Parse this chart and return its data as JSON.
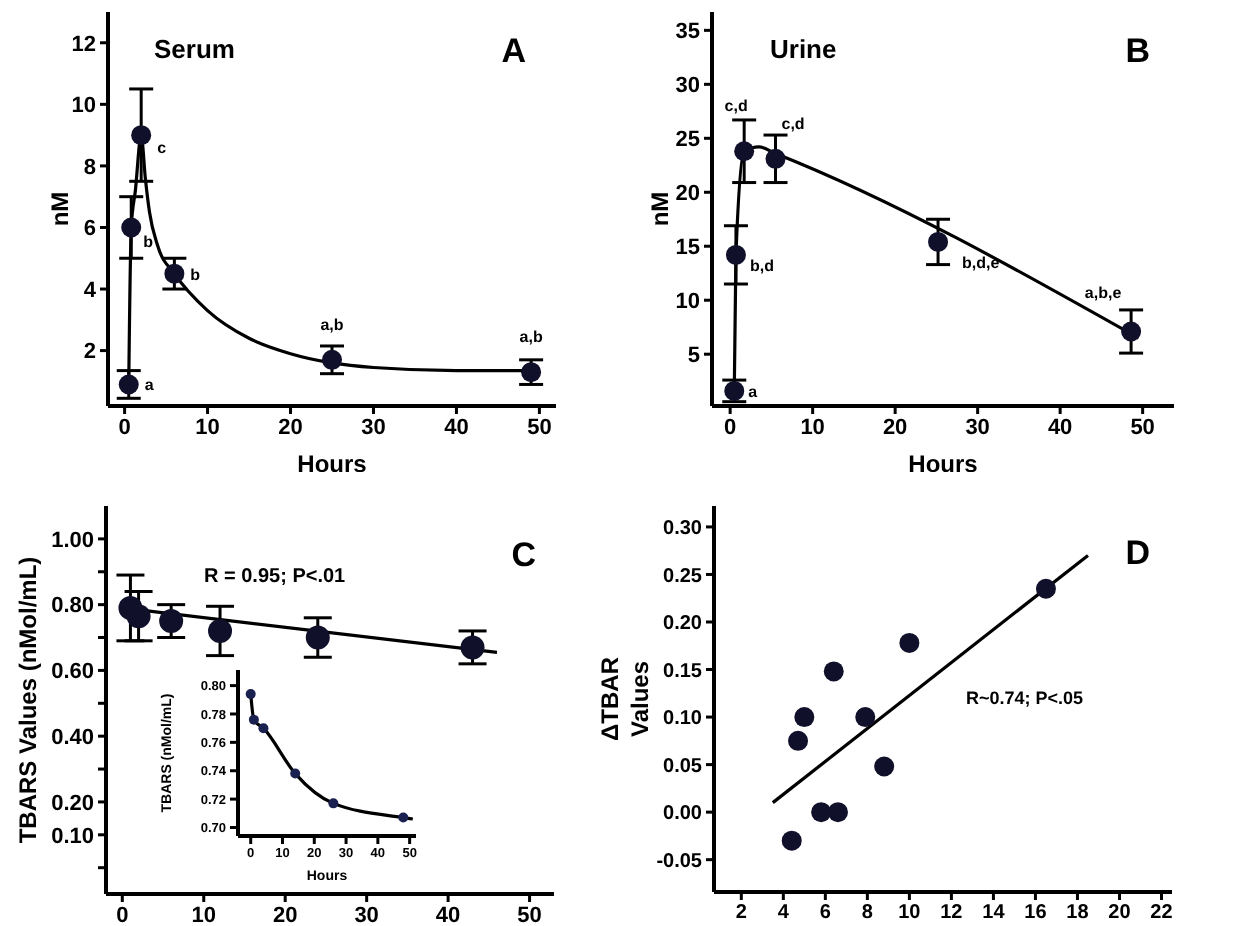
{
  "chart_data": [
    {
      "type": "scatter",
      "xlabel": "Hours",
      "ylabel": "nM",
      "xlim": [
        -2,
        52
      ],
      "ylim": [
        0.2,
        13
      ],
      "xticks": [
        0,
        10,
        20,
        30,
        40,
        50
      ],
      "yticks": [
        2,
        4,
        6,
        8,
        10,
        12
      ],
      "annotations": [
        "Serum",
        "A",
        {
          "text": "a",
          "x": 0.5,
          "y": 0.9
        },
        {
          "text": "b",
          "x": 0.8,
          "y": 6
        },
        {
          "text": "c",
          "x": 2,
          "y": 9
        },
        {
          "text": "b",
          "x": 6,
          "y": 4.5
        },
        {
          "text": "a,b",
          "x": 25,
          "y": 1.7
        },
        {
          "text": "a,b",
          "x": 49,
          "y": 1.3
        }
      ],
      "series": [
        {
          "type": "scatter",
          "marker": "circle",
          "color": "#10102a",
          "x": [
            0.5,
            0.8,
            2,
            6,
            25,
            49
          ],
          "values": [
            0.9,
            6,
            9,
            4.5,
            1.7,
            1.3
          ],
          "errors": [
            0.45,
            1.0,
            1.5,
            0.5,
            0.45,
            0.4
          ]
        },
        {
          "type": "line",
          "color": "#000000",
          "x": [
            0.5,
            0.8,
            1.3,
            2,
            2.5,
            3,
            4,
            6,
            10,
            15,
            20,
            25,
            30,
            40,
            49
          ],
          "values": [
            0.9,
            6,
            7.2,
            9,
            7.6,
            6.5,
            5.4,
            4.5,
            3.3,
            2.4,
            1.9,
            1.6,
            1.45,
            1.35,
            1.35
          ]
        }
      ]
    },
    {
      "type": "scatter",
      "xlabel": "Hours",
      "ylabel": "nM",
      "xlim": [
        -2.2,
        53.8
      ],
      "ylim": [
        0.2,
        36.7
      ],
      "xticks": [
        0,
        10,
        20,
        30,
        40,
        50
      ],
      "yticks": [
        5,
        10,
        15,
        20,
        25,
        30,
        35
      ],
      "annotations": [
        "Urine",
        "B",
        {
          "text": "a",
          "x": 0.5,
          "y": 1.6
        },
        {
          "text": "b,d",
          "x": 0.7,
          "y": 14.2
        },
        {
          "text": "c,d",
          "x": 1.7,
          "y": 23.8
        },
        {
          "text": "c,d",
          "x": 5.5,
          "y": 23.1
        },
        {
          "text": "b,d,e",
          "x": 25.2,
          "y": 15.4
        },
        {
          "text": "a,b,e",
          "x": 48.6,
          "y": 7.1
        }
      ],
      "series": [
        {
          "type": "scatter",
          "marker": "circle",
          "color": "#10102a",
          "x": [
            0.5,
            0.7,
            1.7,
            5.5,
            25.2,
            48.6
          ],
          "values": [
            1.6,
            14.2,
            23.8,
            23.1,
            15.4,
            7.1
          ],
          "errors": [
            1,
            2.7,
            2.9,
            2.2,
            2.1,
            2
          ]
        },
        {
          "type": "line",
          "color": "#000000",
          "x": [
            0.5,
            0.7,
            1.7,
            3.5,
            5.5,
            49.5
          ],
          "values": [
            1.6,
            14.2,
            23.8,
            24.2,
            23.6,
            6.5
          ]
        }
      ]
    },
    {
      "type": "scatter",
      "ylabel": "TBARS Values (nMol/mL)",
      "xlim": [
        -2,
        53
      ],
      "ylim": [
        -0.08,
        1.1
      ],
      "xticks": [
        0,
        10,
        20,
        30,
        40,
        50
      ],
      "yticks": [
        {
          "value": 0,
          "label": null
        },
        {
          "value": 0.1,
          "label": "0.10"
        },
        {
          "value": 0.2,
          "label": "0.20"
        },
        {
          "value": 0.3,
          "label": null
        },
        {
          "value": 0.4,
          "label": "0.40"
        },
        {
          "value": 0.5,
          "label": null
        },
        {
          "value": 0.6,
          "label": "0.60"
        },
        {
          "value": 0.7,
          "label": null
        },
        {
          "value": 0.8,
          "label": "0.80"
        },
        {
          "value": 0.9,
          "label": null
        },
        {
          "value": 1,
          "label": "1.00"
        }
      ],
      "annotations": [
        "R = 0.95; P<.01",
        "C"
      ],
      "series": [
        {
          "type": "scatter",
          "marker": "circle",
          "color": "#10102a",
          "x": [
            1,
            2,
            6,
            12,
            24,
            43
          ],
          "values": [
            0.79,
            0.765,
            0.75,
            0.72,
            0.7,
            0.67
          ],
          "errors": [
            0.1,
            0.075,
            0.05,
            0.075,
            0.06,
            0.05
          ]
        },
        {
          "type": "line",
          "color": "#000000",
          "x": [
            0,
            46
          ],
          "values": [
            0.79,
            0.655
          ]
        }
      ]
    },
    {
      "type": "scatter",
      "xlabel": "Hours",
      "ylabel": "TBARS (nMol/mL)",
      "xlim": [
        -4,
        52
      ],
      "ylim": [
        0.694,
        0.811
      ],
      "xticks": [
        0,
        10,
        20,
        30,
        40,
        50
      ],
      "yticks": [
        {
          "value": 0.7,
          "label": "0.70"
        },
        {
          "value": 0.72,
          "label": "0.72"
        },
        {
          "value": 0.74,
          "label": "0.74"
        },
        {
          "value": 0.76,
          "label": "0.76"
        },
        {
          "value": 0.78,
          "label": "0.78"
        },
        {
          "value": 0.8,
          "label": "0.80"
        }
      ],
      "series": [
        {
          "type": "scatter",
          "marker": "circle",
          "color": "#1a2050",
          "x": [
            0,
            1,
            4,
            14,
            26,
            48
          ],
          "values": [
            0.794,
            0.776,
            0.77,
            0.738,
            0.717,
            0.707
          ]
        },
        {
          "type": "line",
          "color": "#000000",
          "x": [
            0,
            1,
            4,
            14,
            26,
            48,
            51
          ],
          "values": [
            0.794,
            0.776,
            0.77,
            0.738,
            0.717,
            0.707,
            0.706
          ]
        }
      ]
    },
    {
      "type": "scatter",
      "ylabel": "ΔTBAR Values",
      "xlim": [
        0.7,
        22.5
      ],
      "ylim": [
        -0.084,
        0.322
      ],
      "xticks": [
        2,
        4,
        6,
        8,
        10,
        12,
        14,
        16,
        18,
        20,
        22
      ],
      "yticks": [
        {
          "value": -0.05,
          "label": "-0.05"
        },
        {
          "value": 0,
          "label": "0.00"
        },
        {
          "value": 0.05,
          "label": "0.05"
        },
        {
          "value": 0.1,
          "label": "0.10"
        },
        {
          "value": 0.15,
          "label": "0.15"
        },
        {
          "value": 0.2,
          "label": "0.20"
        },
        {
          "value": 0.25,
          "label": "0.25"
        },
        {
          "value": 0.3,
          "label": "0.30"
        }
      ],
      "annotations": [
        "R~0.74; P<.05",
        "D"
      ],
      "series": [
        {
          "type": "scatter",
          "marker": "circle",
          "color": "#10102a",
          "x": [
            4.4,
            4.7,
            5,
            5.8,
            6.4,
            6.6,
            7.9,
            8.8,
            10,
            16.5
          ],
          "values": [
            -0.03,
            0.075,
            0.1,
            0,
            0.148,
            0,
            0.1,
            0.048,
            0.178,
            0.235
          ]
        },
        {
          "type": "line",
          "color": "#000000",
          "x": [
            3.5,
            18.5
          ],
          "values": [
            0.01,
            0.27
          ]
        }
      ]
    }
  ]
}
